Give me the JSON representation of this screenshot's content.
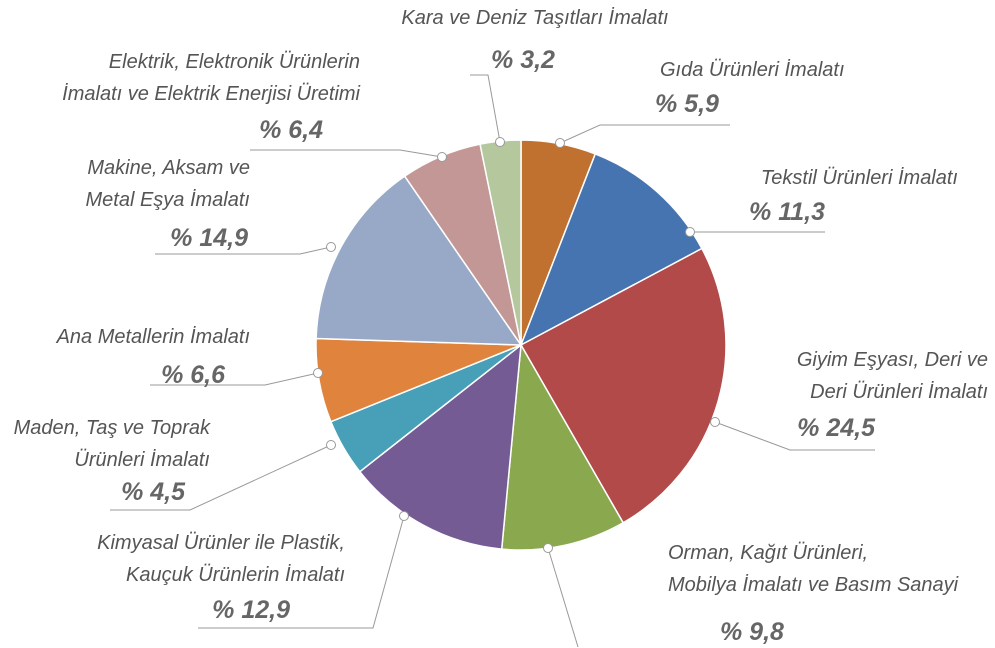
{
  "chart_data": {
    "type": "pie",
    "categories": [
      "Gıda Ürünleri İmalatı",
      "Tekstil Ürünleri İmalatı",
      "Giyim Eşyası, Deri ve\nDeri Ürünleri İmalatı",
      "Orman, Kağıt Ürünleri,\nMobilya İmalatı ve Basım Sanayi",
      "Kimyasal Ürünler ile Plastik,\nKauçuk Ürünlerin İmalatı",
      "Maden, Taş ve Toprak\nÜrünleri İmalatı",
      "Ana Metallerin İmalatı",
      "Makine, Aksam ve\nMetal Eşya İmalatı",
      "Elektrik, Elektronik Ürünlerin\nİmalatı ve Elektrik Enerjisi Üretimi",
      "Kara ve Deniz Taşıtları İmalatı"
    ],
    "values": [
      5.9,
      11.3,
      24.5,
      9.8,
      12.9,
      4.5,
      6.6,
      14.9,
      6.4,
      3.2
    ],
    "value_labels": [
      "% 5,9",
      "% 11,3",
      "% 24,5",
      "% 9,8",
      "% 12,9",
      "% 4,5",
      "% 6,6",
      "% 14,9",
      "% 6,4",
      "% 3,2"
    ],
    "colors": [
      "#c0702f",
      "#4674b0",
      "#b24a4a",
      "#8aa84e",
      "#755b94",
      "#479fb8",
      "#e0843d",
      "#98a9c8",
      "#c49797",
      "#b5c79d"
    ]
  }
}
